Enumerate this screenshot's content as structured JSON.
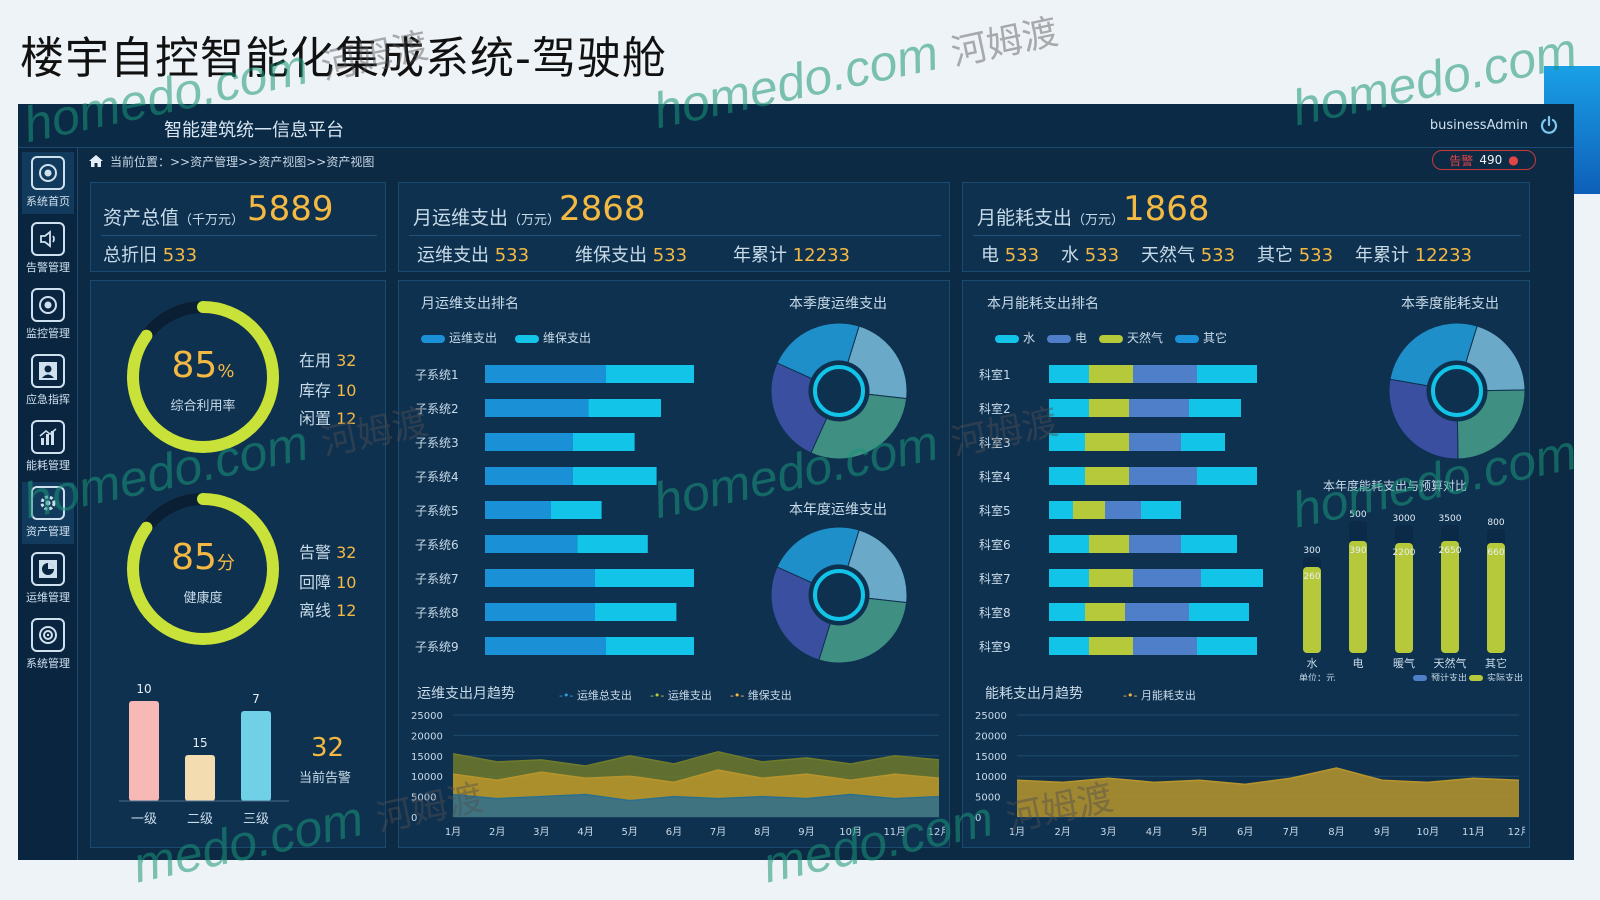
{
  "slide_title": "楼宇自控智能化集成系统-驾驶舱",
  "header": {
    "platform_title": "智能建筑统一信息平台",
    "user": "businessAdmin",
    "alarm_label": "告警",
    "alarm_count": "490"
  },
  "breadcrumb": "当前位置：>>资产管理>>资产视图>>资产视图",
  "sidebar": {
    "items": [
      {
        "label": "系统首页",
        "icon": "camera-lens-icon"
      },
      {
        "label": "告警管理",
        "icon": "speaker-icon"
      },
      {
        "label": "监控管理",
        "icon": "camera-lens-icon"
      },
      {
        "label": "应急指挥",
        "icon": "user-icon"
      },
      {
        "label": "能耗管理",
        "icon": "bar-chart-icon"
      },
      {
        "label": "资产管理",
        "icon": "gear-icon"
      },
      {
        "label": "运维管理",
        "icon": "pie-chart-icon"
      },
      {
        "label": "系统管理",
        "icon": "settings-icon"
      }
    ]
  },
  "asset_kpi": {
    "label": "资产总值",
    "unit": "（千万元）",
    "value": "5889",
    "sub_label": "总折旧",
    "sub_value": "533"
  },
  "ops_kpi": {
    "label": "月运维支出",
    "unit": "（万元）",
    "value": "2868",
    "subs": [
      {
        "label": "运维支出",
        "value": "533"
      },
      {
        "label": "维保支出",
        "value": "533"
      },
      {
        "label": "年累计",
        "value": "12233"
      }
    ]
  },
  "energy_kpi": {
    "label": "月能耗支出",
    "unit": "（万元）",
    "value": "1868",
    "subs": [
      {
        "label": "电",
        "value": "533"
      },
      {
        "label": "水",
        "value": "533"
      },
      {
        "label": "天然气",
        "value": "533"
      },
      {
        "label": "其它",
        "value": "533"
      },
      {
        "label": "年累计",
        "value": "12233"
      }
    ]
  },
  "utilization": {
    "percent_value": "85",
    "percent_unit": "%",
    "label": "综合利用率",
    "fraction": 0.85,
    "stats": [
      {
        "label": "在用",
        "value": "32"
      },
      {
        "label": "库存",
        "value": "10"
      },
      {
        "label": "闲置",
        "value": "12"
      }
    ]
  },
  "health": {
    "score_value": "85",
    "score_unit": "分",
    "label": "健康度",
    "fraction": 0.85,
    "stats": [
      {
        "label": "告警",
        "value": "32"
      },
      {
        "label": "回障",
        "value": "10"
      },
      {
        "label": "离线",
        "value": "12"
      }
    ]
  },
  "current_alarm": {
    "value": "32",
    "label": "当前告警"
  },
  "ops_rank": {
    "title": "月运维支出排名",
    "legend": [
      "运维支出",
      "维保支出"
    ]
  },
  "quarter_ops": {
    "title": "本季度运维支出"
  },
  "year_ops": {
    "title": "本年度运维支出"
  },
  "ops_trend": {
    "title": "运维支出月趋势",
    "legend": [
      "运维总支出",
      "运维支出",
      "维保支出"
    ]
  },
  "energy_rank": {
    "title": "本月能耗支出排名",
    "legend": [
      "水",
      "电",
      "天然气",
      "其它"
    ]
  },
  "quarter_energy": {
    "title": "本季度能耗支出"
  },
  "budget_compare": {
    "title": "本年度能耗支出与预算对比",
    "unit_note": "单位：元",
    "legend": [
      "预计支出",
      "实际支出"
    ]
  },
  "energy_trend": {
    "title": "能耗支出月趋势",
    "legend": [
      "月能耗支出"
    ]
  },
  "colors": {
    "background": "#0d2a45",
    "accent_gold": "#f4b942",
    "bar_blue": "#1a90d6",
    "bar_cyan": "#12c4e8",
    "lime": "#b5c93a",
    "alarm_red": "#e04646"
  },
  "chart_data": [
    {
      "type": "bar",
      "id": "alarm-levels",
      "categories": [
        "一级",
        "二级",
        "三级"
      ],
      "values": [
        10,
        15,
        7
      ],
      "colors": [
        "#f6b9b6",
        "#f3dcb0",
        "#6fd0e6"
      ]
    },
    {
      "type": "bar",
      "id": "ops-rank",
      "orientation": "horizontal",
      "stacked": true,
      "categories": [
        "子系统1",
        "子系统2",
        "子系统3",
        "子系统4",
        "子系统5",
        "子系统6",
        "子系统7",
        "子系统8",
        "子系统9"
      ],
      "series": [
        {
          "name": "运维支出",
          "values": [
            55,
            47,
            40,
            40,
            30,
            42,
            50,
            50,
            55
          ]
        },
        {
          "name": "维保支出",
          "values": [
            40,
            33,
            28,
            38,
            23,
            32,
            45,
            37,
            40
          ]
        }
      ]
    },
    {
      "type": "pie",
      "id": "quarter-ops-donut",
      "values": [
        22,
        30,
        25,
        23
      ]
    },
    {
      "type": "pie",
      "id": "year-ops-donut",
      "values": [
        22,
        28,
        27,
        23
      ]
    },
    {
      "type": "pie",
      "id": "quarter-energy-donut",
      "values": [
        20,
        25,
        28,
        27
      ]
    },
    {
      "type": "bar",
      "id": "energy-rank",
      "orientation": "horizontal",
      "stacked": true,
      "categories": [
        "科室1",
        "科室2",
        "科室3",
        "科室4",
        "科室5",
        "科室6",
        "科室7",
        "科室8",
        "科室9"
      ],
      "series": [
        {
          "name": "水",
          "values": [
            20,
            20,
            18,
            18,
            12,
            20,
            20,
            18,
            20
          ]
        },
        {
          "name": "电",
          "values": [
            22,
            20,
            22,
            22,
            16,
            20,
            22,
            20,
            22
          ]
        },
        {
          "name": "天然气",
          "values": [
            32,
            30,
            26,
            34,
            18,
            26,
            34,
            32,
            32
          ]
        },
        {
          "name": "其它",
          "values": [
            30,
            26,
            22,
            30,
            20,
            28,
            32,
            30,
            30
          ]
        }
      ]
    },
    {
      "type": "bar",
      "id": "budget-compare",
      "categories": [
        "水",
        "电",
        "暖气",
        "天然气",
        "其它"
      ],
      "series": [
        {
          "name": "预计支出",
          "values": [
            300,
            500,
            3000,
            3500,
            800
          ]
        },
        {
          "name": "实际支出",
          "values": [
            260,
            390,
            2200,
            2650,
            660
          ]
        }
      ]
    },
    {
      "type": "area",
      "id": "ops-trend",
      "x": [
        "1月",
        "2月",
        "3月",
        "4月",
        "5月",
        "6月",
        "7月",
        "8月",
        "9月",
        "10月",
        "11月",
        "12月"
      ],
      "y_ticks": [
        "25000",
        "20000",
        "15000",
        "10000",
        "5000",
        "0"
      ],
      "ylim": [
        0,
        25000
      ],
      "series": [
        {
          "name": "运维总支出",
          "values": [
            15500,
            13500,
            14000,
            12500,
            15000,
            13000,
            16000,
            13500,
            14500,
            13000,
            15000,
            14000
          ]
        },
        {
          "name": "运维支出",
          "values": [
            10500,
            9000,
            11000,
            9500,
            10000,
            8500,
            11500,
            9500,
            10500,
            9000,
            10500,
            9500
          ]
        },
        {
          "name": "维保支出",
          "values": [
            5500,
            4500,
            5000,
            5500,
            4000,
            5000,
            4500,
            5000,
            4500,
            5500,
            4500,
            5000
          ]
        }
      ]
    },
    {
      "type": "area",
      "id": "energy-trend",
      "x": [
        "1月",
        "2月",
        "3月",
        "4月",
        "5月",
        "6月",
        "7月",
        "8月",
        "9月",
        "10月",
        "11月",
        "12月"
      ],
      "y_ticks": [
        "25000",
        "20000",
        "15000",
        "10000",
        "5000",
        "0"
      ],
      "ylim": [
        0,
        25000
      ],
      "series": [
        {
          "name": "月能耗支出",
          "values": [
            9000,
            8500,
            9500,
            8500,
            9000,
            8000,
            9500,
            12000,
            9000,
            8500,
            9500,
            9000
          ]
        }
      ]
    }
  ]
}
